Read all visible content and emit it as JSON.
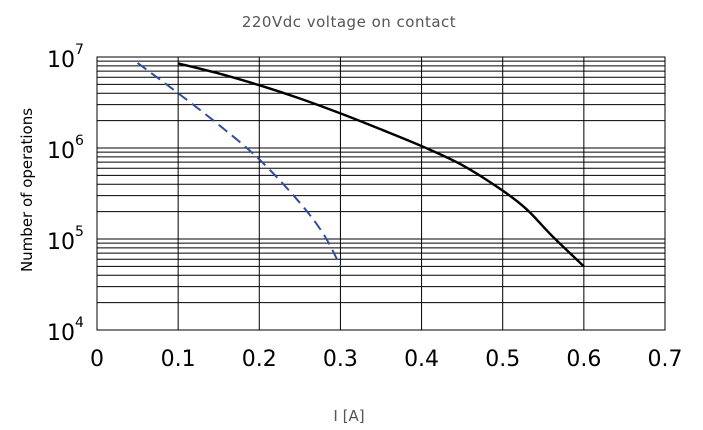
{
  "chart_data": {
    "type": "line",
    "title": "220Vdc voltage on contact",
    "xlabel": "I [A]",
    "ylabel": "Number of operations",
    "xlim": [
      0,
      0.7
    ],
    "ylim": [
      10000,
      10000000
    ],
    "yscale": "log",
    "grid": true,
    "x_ticks": [
      "0",
      "0.1",
      "0.2",
      "0.3",
      "0.4",
      "0.5",
      "0.6",
      "0.7"
    ],
    "y_ticks": [
      {
        "base": "10",
        "exp": "4"
      },
      {
        "base": "10",
        "exp": "5"
      },
      {
        "base": "10",
        "exp": "6"
      },
      {
        "base": "10",
        "exp": "7"
      }
    ],
    "series": [
      {
        "color": "#000000",
        "dash": "solid",
        "x": [
          0.1,
          0.15,
          0.2,
          0.25,
          0.3,
          0.35,
          0.4,
          0.45,
          0.5,
          0.53,
          0.56,
          0.6
        ],
        "y": [
          8500000,
          6600000,
          4900000,
          3500000,
          2400000,
          1600000,
          1050000,
          650000,
          340000,
          210000,
          110000,
          50000
        ]
      },
      {
        "color": "#2f4f9e",
        "dash": "dashed",
        "x": [
          0.05,
          0.1,
          0.15,
          0.2,
          0.25,
          0.28,
          0.3
        ],
        "y": [
          8600000,
          4000000,
          1800000,
          750000,
          250000,
          110000,
          50000
        ]
      }
    ]
  }
}
